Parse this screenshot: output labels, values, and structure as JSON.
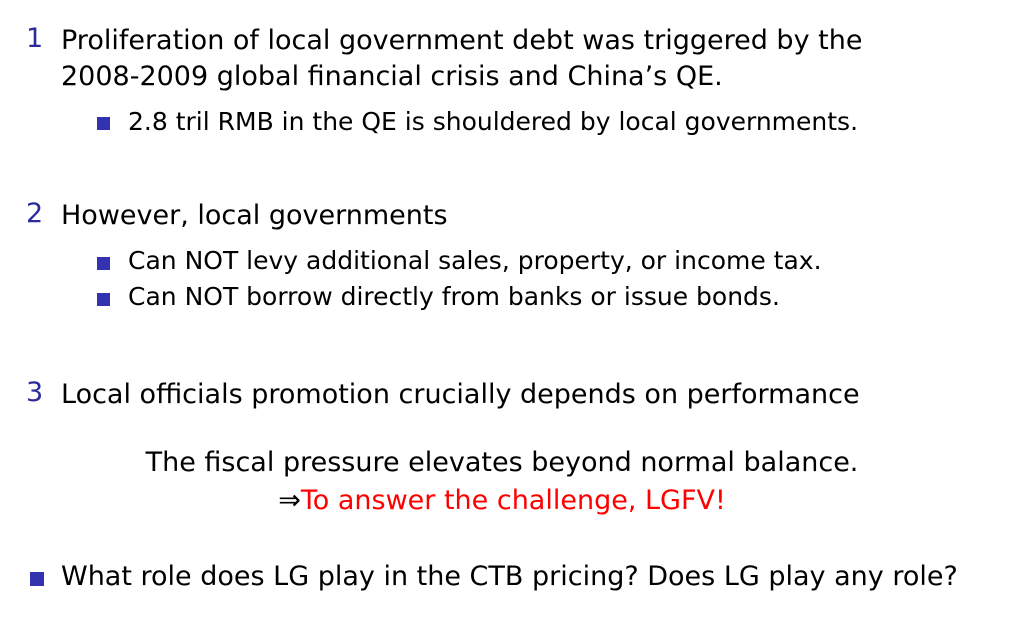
{
  "items": [
    {
      "number": "1",
      "lines": [
        "Proliferation of local government debt was triggered by the",
        "2008-2009 global financial crisis and China’s QE."
      ],
      "bullets": [
        "2.8 tril RMB in the QE is shouldered by local governments."
      ]
    },
    {
      "number": "2",
      "lines": [
        "However, local governments"
      ],
      "bullets": [
        "Can NOT levy additional sales, property, or income tax.",
        "Can NOT borrow directly from banks or issue bonds."
      ]
    },
    {
      "number": "3",
      "lines": [
        "Local officials promotion crucially depends on performance"
      ],
      "bullets": []
    }
  ],
  "center": {
    "line1": "The fiscal pressure elevates beyond normal balance.",
    "arrow": "⇒",
    "line2": "To answer the challenge, LGFV!"
  },
  "final_bullet": "What role does LG play in the CTB pricing? Does LG play any role?",
  "colors": {
    "number": "#2b2b9e",
    "bullet": "#3333b2",
    "highlight": "#ff0000"
  }
}
